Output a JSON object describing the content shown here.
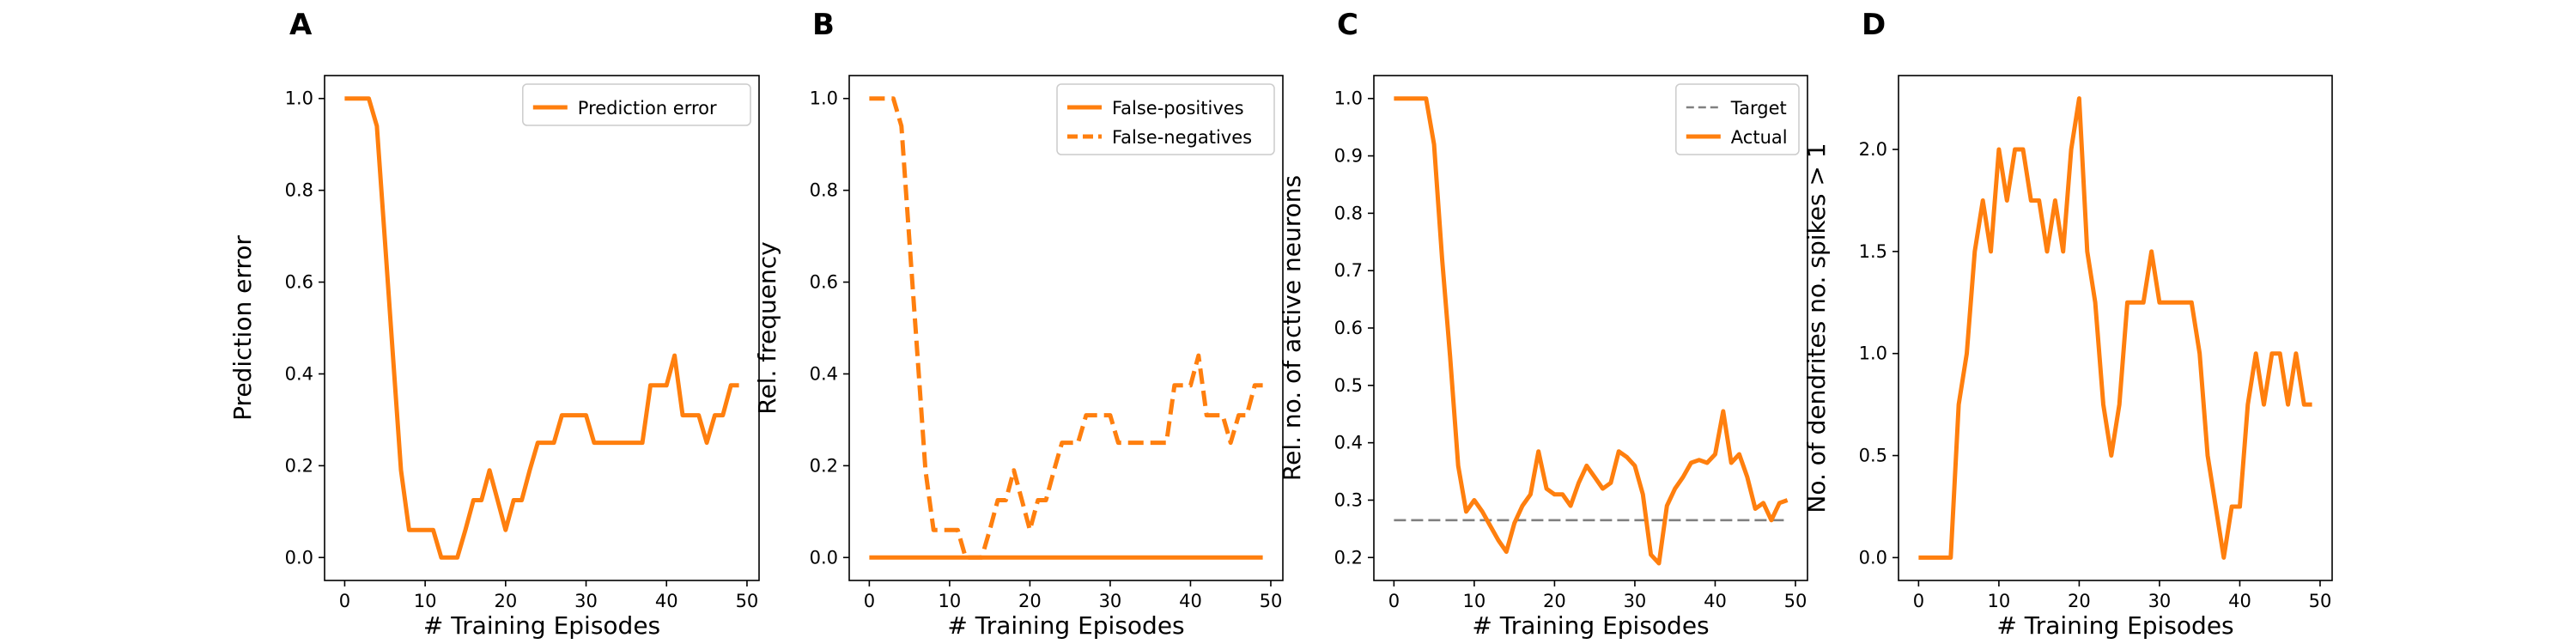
{
  "colors": {
    "series": "#ff7f0e",
    "target": "#808080",
    "axis": "#000000"
  },
  "chart_data": [
    {
      "panel": "A",
      "type": "line",
      "xlabel": "# Training Episodes",
      "ylabel": "Prediction error",
      "xlim": [
        -2.5,
        51.5
      ],
      "ylim": [
        -0.05,
        1.05
      ],
      "xticks": [
        "0",
        "10",
        "20",
        "30",
        "40",
        "50"
      ],
      "yticks": [
        "0.0",
        "0.2",
        "0.4",
        "0.6",
        "0.8",
        "1.0"
      ],
      "legend": "top-right",
      "series": [
        {
          "name": "Prediction error",
          "style": "solid",
          "x": [
            0,
            1,
            2,
            3,
            4,
            5,
            6,
            7,
            8,
            9,
            10,
            11,
            12,
            13,
            14,
            15,
            16,
            17,
            18,
            19,
            20,
            21,
            22,
            23,
            24,
            25,
            26,
            27,
            28,
            29,
            30,
            31,
            32,
            33,
            34,
            35,
            36,
            37,
            38,
            39,
            40,
            41,
            42,
            43,
            44,
            45,
            46,
            47,
            48,
            49
          ],
          "y": [
            1.0,
            1.0,
            1.0,
            1.0,
            0.94,
            0.69,
            0.44,
            0.19,
            0.06,
            0.06,
            0.06,
            0.06,
            0.0,
            0.0,
            0.0,
            0.06,
            0.125,
            0.125,
            0.19,
            0.125,
            0.06,
            0.125,
            0.125,
            0.19,
            0.25,
            0.25,
            0.25,
            0.31,
            0.31,
            0.31,
            0.31,
            0.25,
            0.25,
            0.25,
            0.25,
            0.25,
            0.25,
            0.25,
            0.375,
            0.375,
            0.375,
            0.44,
            0.31,
            0.31,
            0.31,
            0.25,
            0.31,
            0.31,
            0.375,
            0.375
          ]
        }
      ]
    },
    {
      "panel": "B",
      "type": "line",
      "xlabel": "# Training Episodes",
      "ylabel": "Rel. frequency",
      "xlim": [
        -2.5,
        51.5
      ],
      "ylim": [
        -0.05,
        1.05
      ],
      "xticks": [
        "0",
        "10",
        "20",
        "30",
        "40",
        "50"
      ],
      "yticks": [
        "0.0",
        "0.2",
        "0.4",
        "0.6",
        "0.8",
        "1.0"
      ],
      "legend": "top-right",
      "series": [
        {
          "name": "False-positives",
          "style": "solid",
          "x": [
            0,
            49
          ],
          "y": [
            0.0,
            0.0
          ]
        },
        {
          "name": "False-negatives",
          "style": "dashed",
          "x": [
            0,
            1,
            2,
            3,
            4,
            5,
            6,
            7,
            8,
            9,
            10,
            11,
            12,
            13,
            14,
            15,
            16,
            17,
            18,
            19,
            20,
            21,
            22,
            23,
            24,
            25,
            26,
            27,
            28,
            29,
            30,
            31,
            32,
            33,
            34,
            35,
            36,
            37,
            38,
            39,
            40,
            41,
            42,
            43,
            44,
            45,
            46,
            47,
            48,
            49
          ],
          "y": [
            1.0,
            1.0,
            1.0,
            1.0,
            0.94,
            0.69,
            0.44,
            0.19,
            0.06,
            0.06,
            0.06,
            0.06,
            0.0,
            0.0,
            0.0,
            0.06,
            0.125,
            0.125,
            0.19,
            0.125,
            0.06,
            0.125,
            0.125,
            0.19,
            0.25,
            0.25,
            0.25,
            0.31,
            0.31,
            0.31,
            0.31,
            0.25,
            0.25,
            0.25,
            0.25,
            0.25,
            0.25,
            0.25,
            0.375,
            0.375,
            0.375,
            0.44,
            0.31,
            0.31,
            0.31,
            0.25,
            0.31,
            0.31,
            0.375,
            0.375
          ]
        }
      ]
    },
    {
      "panel": "C",
      "type": "line",
      "xlabel": "# Training Episodes",
      "ylabel": "Rel. no. of active neurons",
      "xlim": [
        -2.5,
        51.5
      ],
      "ylim": [
        0.16,
        1.04
      ],
      "xticks": [
        "0",
        "10",
        "20",
        "30",
        "40",
        "50"
      ],
      "yticks": [
        "0.2",
        "0.3",
        "0.4",
        "0.5",
        "0.6",
        "0.7",
        "0.8",
        "0.9",
        "1.0"
      ],
      "legend": "top-right",
      "series": [
        {
          "name": "Target",
          "style": "dashed",
          "x": [
            0,
            49
          ],
          "y": [
            0.265,
            0.265
          ]
        },
        {
          "name": "Actual",
          "style": "solid",
          "x": [
            0,
            1,
            2,
            3,
            4,
            5,
            6,
            7,
            8,
            9,
            10,
            11,
            12,
            13,
            14,
            15,
            16,
            17,
            18,
            19,
            20,
            21,
            22,
            23,
            24,
            25,
            26,
            27,
            28,
            29,
            30,
            31,
            32,
            33,
            34,
            35,
            36,
            37,
            38,
            39,
            40,
            41,
            42,
            43,
            44,
            45,
            46,
            47,
            48,
            49
          ],
          "y": [
            1.0,
            1.0,
            1.0,
            1.0,
            1.0,
            0.92,
            0.72,
            0.55,
            0.36,
            0.28,
            0.3,
            0.28,
            0.255,
            0.23,
            0.21,
            0.26,
            0.29,
            0.31,
            0.385,
            0.32,
            0.31,
            0.31,
            0.29,
            0.33,
            0.36,
            0.34,
            0.32,
            0.33,
            0.385,
            0.375,
            0.36,
            0.31,
            0.205,
            0.19,
            0.29,
            0.32,
            0.34,
            0.365,
            0.37,
            0.365,
            0.38,
            0.455,
            0.365,
            0.38,
            0.34,
            0.285,
            0.295,
            0.265,
            0.295,
            0.3
          ]
        }
      ]
    },
    {
      "panel": "D",
      "type": "line",
      "xlabel": "# Training Episodes",
      "ylabel": "No. of dendrites no. spikes > 1",
      "xlim": [
        -2.5,
        51.5
      ],
      "ylim": [
        -0.112,
        2.362
      ],
      "xticks": [
        "0",
        "10",
        "20",
        "30",
        "40",
        "50"
      ],
      "yticks": [
        "0.0",
        "0.5",
        "1.0",
        "1.5",
        "2.0"
      ],
      "legend": "none",
      "series": [
        {
          "name": "",
          "style": "solid",
          "x": [
            0,
            1,
            2,
            3,
            4,
            5,
            6,
            7,
            8,
            9,
            10,
            11,
            12,
            13,
            14,
            15,
            16,
            17,
            18,
            19,
            20,
            21,
            22,
            23,
            24,
            25,
            26,
            27,
            28,
            29,
            30,
            31,
            32,
            33,
            34,
            35,
            36,
            37,
            38,
            39,
            40,
            41,
            42,
            43,
            44,
            45,
            46,
            47,
            48,
            49
          ],
          "y": [
            0.0,
            0.0,
            0.0,
            0.0,
            0.0,
            0.75,
            1.0,
            1.5,
            1.75,
            1.5,
            2.0,
            1.75,
            2.0,
            2.0,
            1.75,
            1.75,
            1.5,
            1.75,
            1.5,
            2.0,
            2.25,
            1.5,
            1.25,
            0.75,
            0.5,
            0.75,
            1.25,
            1.25,
            1.25,
            1.5,
            1.25,
            1.25,
            1.25,
            1.25,
            1.25,
            1.0,
            0.5,
            0.25,
            0.0,
            0.25,
            0.25,
            0.75,
            1.0,
            0.75,
            1.0,
            1.0,
            0.75,
            1.0,
            0.75,
            0.75
          ]
        }
      ]
    }
  ]
}
